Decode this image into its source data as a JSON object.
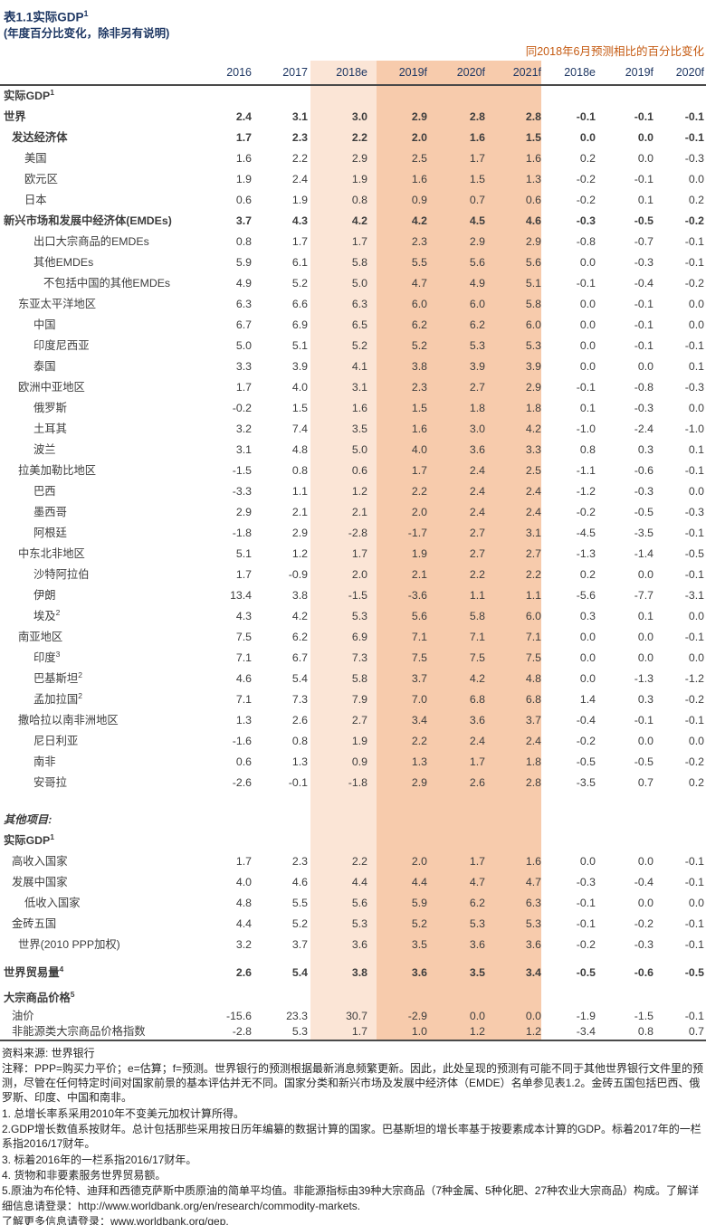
{
  "header": {
    "title": "表1.1实际GDP",
    "title_sup": "1",
    "subtitle": "(年度百分比变化，除非另有说明)",
    "right_note": "同2018年6月预测相比的百分比变化"
  },
  "columns": [
    "2016",
    "2017",
    "2018e",
    "2019f",
    "2020f",
    "2021f",
    "2018e",
    "2019f",
    "2020f"
  ],
  "colors": {
    "title_navy": "#1F3864",
    "note_orange": "#C55A11",
    "band_light": "#FBE5D6",
    "band_dark": "#F7CBAC",
    "rule_gray": "#4a4a4a"
  },
  "rows": [
    {
      "label": "实际GDP",
      "sup": "1",
      "indent": 0,
      "bold": true,
      "section": true
    },
    {
      "label": "世界",
      "indent": 0,
      "bold": true,
      "values": [
        "2.4",
        "3.1",
        "3.0",
        "2.9",
        "2.8",
        "2.8",
        "-0.1",
        "-0.1",
        "-0.1"
      ]
    },
    {
      "label": "发达经济体",
      "indent": 1,
      "bold": true,
      "values": [
        "1.7",
        "2.3",
        "2.2",
        "2.0",
        "1.6",
        "1.5",
        "0.0",
        "0.0",
        "-0.1"
      ]
    },
    {
      "label": "美国",
      "indent": 3,
      "values": [
        "1.6",
        "2.2",
        "2.9",
        "2.5",
        "1.7",
        "1.6",
        "0.2",
        "0.0",
        "-0.3"
      ]
    },
    {
      "label": "欧元区",
      "indent": 3,
      "values": [
        "1.9",
        "2.4",
        "1.9",
        "1.6",
        "1.5",
        "1.3",
        "-0.2",
        "-0.1",
        "0.0"
      ]
    },
    {
      "label": "日本",
      "indent": 3,
      "values": [
        "0.6",
        "1.9",
        "0.8",
        "0.9",
        "0.7",
        "0.6",
        "-0.2",
        "0.1",
        "0.2"
      ]
    },
    {
      "label": "新兴市场和发展中经济体(EMDEs)",
      "indent": 0,
      "bold": true,
      "values": [
        "3.7",
        "4.3",
        "4.2",
        "4.2",
        "4.5",
        "4.6",
        "-0.3",
        "-0.5",
        "-0.2"
      ]
    },
    {
      "label": "出口大宗商品的EMDEs",
      "indent": 4,
      "values": [
        "0.8",
        "1.7",
        "1.7",
        "2.3",
        "2.9",
        "2.9",
        "-0.8",
        "-0.7",
        "-0.1"
      ]
    },
    {
      "label": "其他EMDEs",
      "indent": 4,
      "values": [
        "5.9",
        "6.1",
        "5.8",
        "5.5",
        "5.6",
        "5.6",
        "0.0",
        "-0.3",
        "-0.1"
      ]
    },
    {
      "label": "不包括中国的其他EMDEs",
      "indent": 5,
      "values": [
        "4.9",
        "5.2",
        "5.0",
        "4.7",
        "4.9",
        "5.1",
        "-0.1",
        "-0.4",
        "-0.2"
      ]
    },
    {
      "label": "东亚太平洋地区",
      "indent": 2,
      "values": [
        "6.3",
        "6.6",
        "6.3",
        "6.0",
        "6.0",
        "5.8",
        "0.0",
        "-0.1",
        "0.0"
      ]
    },
    {
      "label": "中国",
      "indent": 4,
      "values": [
        "6.7",
        "6.9",
        "6.5",
        "6.2",
        "6.2",
        "6.0",
        "0.0",
        "-0.1",
        "0.0"
      ]
    },
    {
      "label": "印度尼西亚",
      "indent": 4,
      "values": [
        "5.0",
        "5.1",
        "5.2",
        "5.2",
        "5.3",
        "5.3",
        "0.0",
        "-0.1",
        "-0.1"
      ]
    },
    {
      "label": "泰国",
      "indent": 4,
      "values": [
        "3.3",
        "3.9",
        "4.1",
        "3.8",
        "3.9",
        "3.9",
        "0.0",
        "0.0",
        "0.1"
      ]
    },
    {
      "label": "欧洲中亚地区",
      "indent": 2,
      "values": [
        "1.7",
        "4.0",
        "3.1",
        "2.3",
        "2.7",
        "2.9",
        "-0.1",
        "-0.8",
        "-0.3"
      ]
    },
    {
      "label": "俄罗斯",
      "indent": 4,
      "values": [
        "-0.2",
        "1.5",
        "1.6",
        "1.5",
        "1.8",
        "1.8",
        "0.1",
        "-0.3",
        "0.0"
      ]
    },
    {
      "label": "土耳其",
      "indent": 4,
      "values": [
        "3.2",
        "7.4",
        "3.5",
        "1.6",
        "3.0",
        "4.2",
        "-1.0",
        "-2.4",
        "-1.0"
      ]
    },
    {
      "label": "波兰",
      "indent": 4,
      "values": [
        "3.1",
        "4.8",
        "5.0",
        "4.0",
        "3.6",
        "3.3",
        "0.8",
        "0.3",
        "0.1"
      ]
    },
    {
      "label": "拉美加勒比地区",
      "indent": 2,
      "values": [
        "-1.5",
        "0.8",
        "0.6",
        "1.7",
        "2.4",
        "2.5",
        "-1.1",
        "-0.6",
        "-0.1"
      ]
    },
    {
      "label": "巴西",
      "indent": 4,
      "values": [
        "-3.3",
        "1.1",
        "1.2",
        "2.2",
        "2.4",
        "2.4",
        "-1.2",
        "-0.3",
        "0.0"
      ]
    },
    {
      "label": "墨西哥",
      "indent": 4,
      "values": [
        "2.9",
        "2.1",
        "2.1",
        "2.0",
        "2.4",
        "2.4",
        "-0.2",
        "-0.5",
        "-0.3"
      ]
    },
    {
      "label": "阿根廷",
      "indent": 4,
      "values": [
        "-1.8",
        "2.9",
        "-2.8",
        "-1.7",
        "2.7",
        "3.1",
        "-4.5",
        "-3.5",
        "-0.1"
      ]
    },
    {
      "label": "中东北非地区",
      "indent": 2,
      "values": [
        "5.1",
        "1.2",
        "1.7",
        "1.9",
        "2.7",
        "2.7",
        "-1.3",
        "-1.4",
        "-0.5"
      ]
    },
    {
      "label": "沙特阿拉伯",
      "indent": 4,
      "values": [
        "1.7",
        "-0.9",
        "2.0",
        "2.1",
        "2.2",
        "2.2",
        "0.2",
        "0.0",
        "-0.1"
      ]
    },
    {
      "label": "伊朗",
      "indent": 4,
      "values": [
        "13.4",
        "3.8",
        "-1.5",
        "-3.6",
        "1.1",
        "1.1",
        "-5.6",
        "-7.7",
        "-3.1"
      ]
    },
    {
      "label": "埃及",
      "sup": "2",
      "indent": 4,
      "values": [
        "4.3",
        "4.2",
        "5.3",
        "5.6",
        "5.8",
        "6.0",
        "0.3",
        "0.1",
        "0.0"
      ]
    },
    {
      "label": "南亚地区",
      "indent": 2,
      "values": [
        "7.5",
        "6.2",
        "6.9",
        "7.1",
        "7.1",
        "7.1",
        "0.0",
        "0.0",
        "-0.1"
      ]
    },
    {
      "label": "印度",
      "sup": "3",
      "indent": 4,
      "values": [
        "7.1",
        "6.7",
        "7.3",
        "7.5",
        "7.5",
        "7.5",
        "0.0",
        "0.0",
        "0.0"
      ]
    },
    {
      "label": "巴基斯坦",
      "sup": "2",
      "indent": 4,
      "values": [
        "4.6",
        "5.4",
        "5.8",
        "3.7",
        "4.2",
        "4.8",
        "0.0",
        "-1.3",
        "-1.2"
      ]
    },
    {
      "label": "孟加拉国",
      "sup": "2",
      "indent": 4,
      "values": [
        "7.1",
        "7.3",
        "7.9",
        "7.0",
        "6.8",
        "6.8",
        "1.4",
        "0.3",
        "-0.2"
      ]
    },
    {
      "label": "撒哈拉以南非洲地区",
      "indent": 2,
      "values": [
        "1.3",
        "2.6",
        "2.7",
        "3.4",
        "3.6",
        "3.7",
        "-0.4",
        "-0.1",
        "-0.1"
      ]
    },
    {
      "label": "尼日利亚",
      "indent": 4,
      "values": [
        "-1.6",
        "0.8",
        "1.9",
        "2.2",
        "2.4",
        "2.4",
        "-0.2",
        "0.0",
        "0.0"
      ]
    },
    {
      "label": "南非",
      "indent": 4,
      "values": [
        "0.6",
        "1.3",
        "0.9",
        "1.3",
        "1.7",
        "1.8",
        "-0.5",
        "-0.5",
        "-0.2"
      ]
    },
    {
      "label": "安哥拉",
      "indent": 4,
      "values": [
        "-2.6",
        "-0.1",
        "-1.8",
        "2.9",
        "2.6",
        "2.8",
        "-3.5",
        "0.7",
        "0.2"
      ]
    },
    {
      "label": "其他项目:",
      "indent": 0,
      "bold": true,
      "italic": true,
      "section": true,
      "gap": "lg"
    },
    {
      "label": "实际GDP",
      "sup": "1",
      "indent": 0,
      "bold": true,
      "section": true
    },
    {
      "label": "高收入国家",
      "indent": 1,
      "values": [
        "1.7",
        "2.3",
        "2.2",
        "2.0",
        "1.7",
        "1.6",
        "0.0",
        "0.0",
        "-0.1"
      ]
    },
    {
      "label": "发展中国家",
      "indent": 1,
      "values": [
        "4.0",
        "4.6",
        "4.4",
        "4.4",
        "4.7",
        "4.7",
        "-0.3",
        "-0.4",
        "-0.1"
      ]
    },
    {
      "label": "低收入国家",
      "indent": 3,
      "values": [
        "4.8",
        "5.5",
        "5.6",
        "5.9",
        "6.2",
        "6.3",
        "-0.1",
        "0.0",
        "0.0"
      ]
    },
    {
      "label": "金砖五国",
      "indent": 1,
      "values": [
        "4.4",
        "5.2",
        "5.3",
        "5.2",
        "5.3",
        "5.3",
        "-0.1",
        "-0.2",
        "-0.1"
      ]
    },
    {
      "label": "世界(2010 PPP加权)",
      "indent": 2,
      "values": [
        "3.2",
        "3.7",
        "3.6",
        "3.5",
        "3.6",
        "3.6",
        "-0.2",
        "-0.3",
        "-0.1"
      ]
    },
    {
      "label": "世界贸易量",
      "sup": "4",
      "indent": 0,
      "bold": true,
      "gap": "sm",
      "values": [
        "2.6",
        "5.4",
        "3.8",
        "3.6",
        "3.5",
        "3.4",
        "-0.5",
        "-0.6",
        "-0.5"
      ]
    },
    {
      "label": "大宗商品价格",
      "sup": "5",
      "indent": 0,
      "bold": true,
      "section": true,
      "gap": "xs"
    },
    {
      "label": "油价",
      "indent": 1,
      "compact": true,
      "values": [
        "-15.6",
        "23.3",
        "30.7",
        "-2.9",
        "0.0",
        "0.0",
        "-1.9",
        "-1.5",
        "-0.1"
      ]
    },
    {
      "label": "非能源类大宗商品价格指数",
      "indent": 1,
      "compact": true,
      "values": [
        "-2.8",
        "5.3",
        "1.7",
        "1.0",
        "1.2",
        "1.2",
        "-3.4",
        "0.8",
        "0.7"
      ]
    }
  ],
  "footer": {
    "source": "资料来源: 世界银行",
    "notes": [
      "注释：PPP=购买力平价；e=估算；f=预测。世界银行的预测根据最新消息频繁更新。因此，此处呈现的预测有可能不同于其他世界银行文件里的预测，尽管在任何特定时间对国家前景的基本评估并无不同。国家分类和新兴市场及发展中经济体（EMDE）名单参见表1.2。金砖五国包括巴西、俄罗斯、印度、中国和南非。",
      "1. 总增长率系采用2010年不变美元加权计算所得。",
      "2.GDP增长数值系按财年。总计包括那些采用按日历年编纂的数据计算的国家。巴基斯坦的增长率基于按要素成本计算的GDP。标着2017年的一栏系指2016/17财年。",
      "3. 标着2016年的一栏系指2016/17财年。",
      "4. 货物和非要素服务世界贸易额。",
      "5.原油为布伦特、迪拜和西德克萨斯中质原油的简单平均值。非能源指标由39种大宗商品（7种金属、5种化肥、27种农业大宗商品）构成。了解详细信息请登录：http://www.worldbank.org/en/research/commodity-markets.",
      "了解更多信息请登录：www.worldbank.org/gep."
    ]
  }
}
